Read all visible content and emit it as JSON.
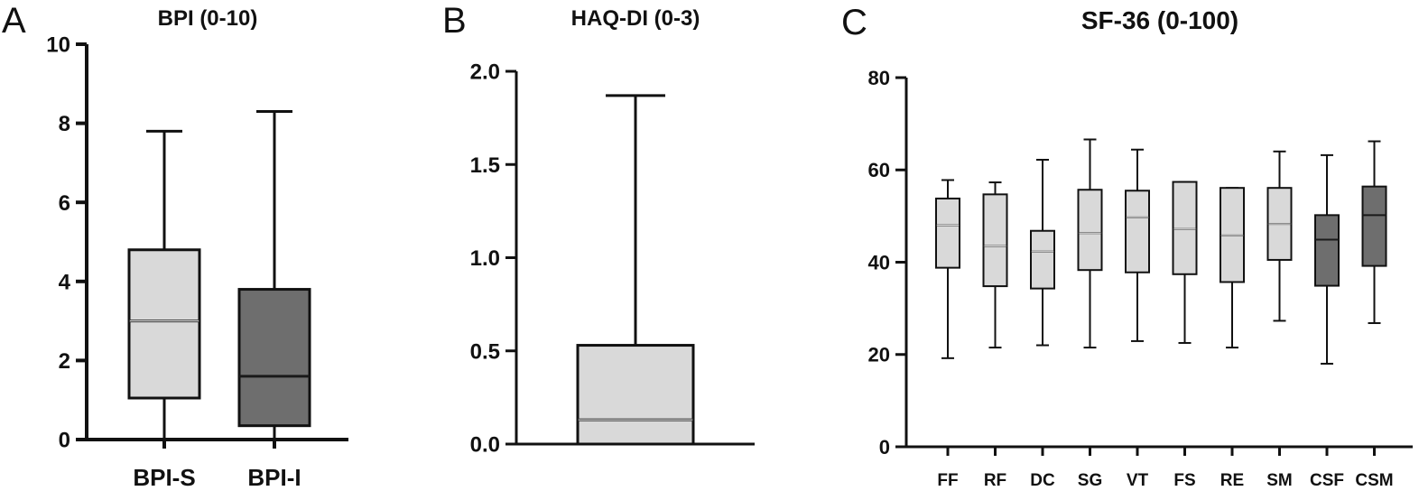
{
  "panels": [
    {
      "letter": "A",
      "title": "BPI (0-10)"
    },
    {
      "letter": "B",
      "title": "HAQ-DI (0-3)"
    },
    {
      "letter": "C",
      "title": "SF-36 (0-100)"
    }
  ],
  "chart_data": [
    {
      "type": "boxplot",
      "title": "BPI (0-10)",
      "ylim": [
        0,
        10
      ],
      "yticks": [
        0,
        2,
        4,
        6,
        8,
        10
      ],
      "ytick_labels": [
        "0",
        "2",
        "4",
        "6",
        "8",
        "10"
      ],
      "categories": [
        "BPI-S",
        "BPI-I"
      ],
      "boxes": [
        {
          "category": "BPI-S",
          "min": 0,
          "q1": 1.05,
          "median": 3.0,
          "q3": 4.8,
          "max": 7.8,
          "color": "#d9d9d9"
        },
        {
          "category": "BPI-I",
          "min": 0,
          "q1": 0.35,
          "median": 1.6,
          "q3": 3.8,
          "max": 8.3,
          "color": "#6e6e6e"
        }
      ]
    },
    {
      "type": "boxplot",
      "title": "HAQ-DI (0-3)",
      "ylim": [
        0,
        2.0
      ],
      "yticks": [
        0,
        0.5,
        1.0,
        1.5,
        2.0
      ],
      "ytick_labels": [
        "0.0",
        "0.5",
        "1.0",
        "1.5",
        "2.0"
      ],
      "categories": [
        ""
      ],
      "boxes": [
        {
          "category": "",
          "min": 0,
          "q1": 0,
          "median": 0.13,
          "q3": 0.53,
          "max": 1.87,
          "color": "#d9d9d9"
        }
      ]
    },
    {
      "type": "boxplot",
      "title": "SF-36 (0-100)",
      "ylim": [
        0,
        80
      ],
      "yticks": [
        0,
        20,
        40,
        60,
        80
      ],
      "ytick_labels": [
        "0",
        "20",
        "40",
        "60",
        "80"
      ],
      "categories": [
        "FF",
        "RF",
        "DC",
        "SG",
        "VT",
        "FS",
        "RE",
        "SM",
        "CSF",
        "CSM"
      ],
      "boxes": [
        {
          "category": "FF",
          "min": 19.2,
          "q1": 38.8,
          "median": 48.0,
          "q3": 53.8,
          "max": 57.8,
          "color": "#d9d9d9"
        },
        {
          "category": "RF",
          "min": 21.5,
          "q1": 34.8,
          "median": 43.5,
          "q3": 54.7,
          "max": 57.3,
          "color": "#d9d9d9"
        },
        {
          "category": "DC",
          "min": 22.0,
          "q1": 34.3,
          "median": 42.3,
          "q3": 46.8,
          "max": 62.2,
          "color": "#d9d9d9"
        },
        {
          "category": "SG",
          "min": 21.5,
          "q1": 38.3,
          "median": 46.3,
          "q3": 55.7,
          "max": 66.6,
          "color": "#d9d9d9"
        },
        {
          "category": "VT",
          "min": 22.9,
          "q1": 37.8,
          "median": 49.7,
          "q3": 55.5,
          "max": 64.4,
          "color": "#d9d9d9"
        },
        {
          "category": "FS",
          "min": 22.5,
          "q1": 37.4,
          "median": 47.2,
          "q3": 57.4,
          "max": 57.4,
          "color": "#d9d9d9"
        },
        {
          "category": "RE",
          "min": 21.5,
          "q1": 35.7,
          "median": 45.8,
          "q3": 56.1,
          "max": 56.1,
          "color": "#d9d9d9"
        },
        {
          "category": "SM",
          "min": 27.3,
          "q1": 40.5,
          "median": 48.3,
          "q3": 56.1,
          "max": 64.0,
          "color": "#d9d9d9"
        },
        {
          "category": "CSF",
          "min": 18.0,
          "q1": 34.9,
          "median": 44.9,
          "q3": 50.2,
          "max": 63.2,
          "color": "#6e6e6e"
        },
        {
          "category": "CSM",
          "min": 26.8,
          "q1": 39.2,
          "median": 50.2,
          "q3": 56.4,
          "max": 66.2,
          "color": "#6e6e6e"
        }
      ]
    }
  ]
}
